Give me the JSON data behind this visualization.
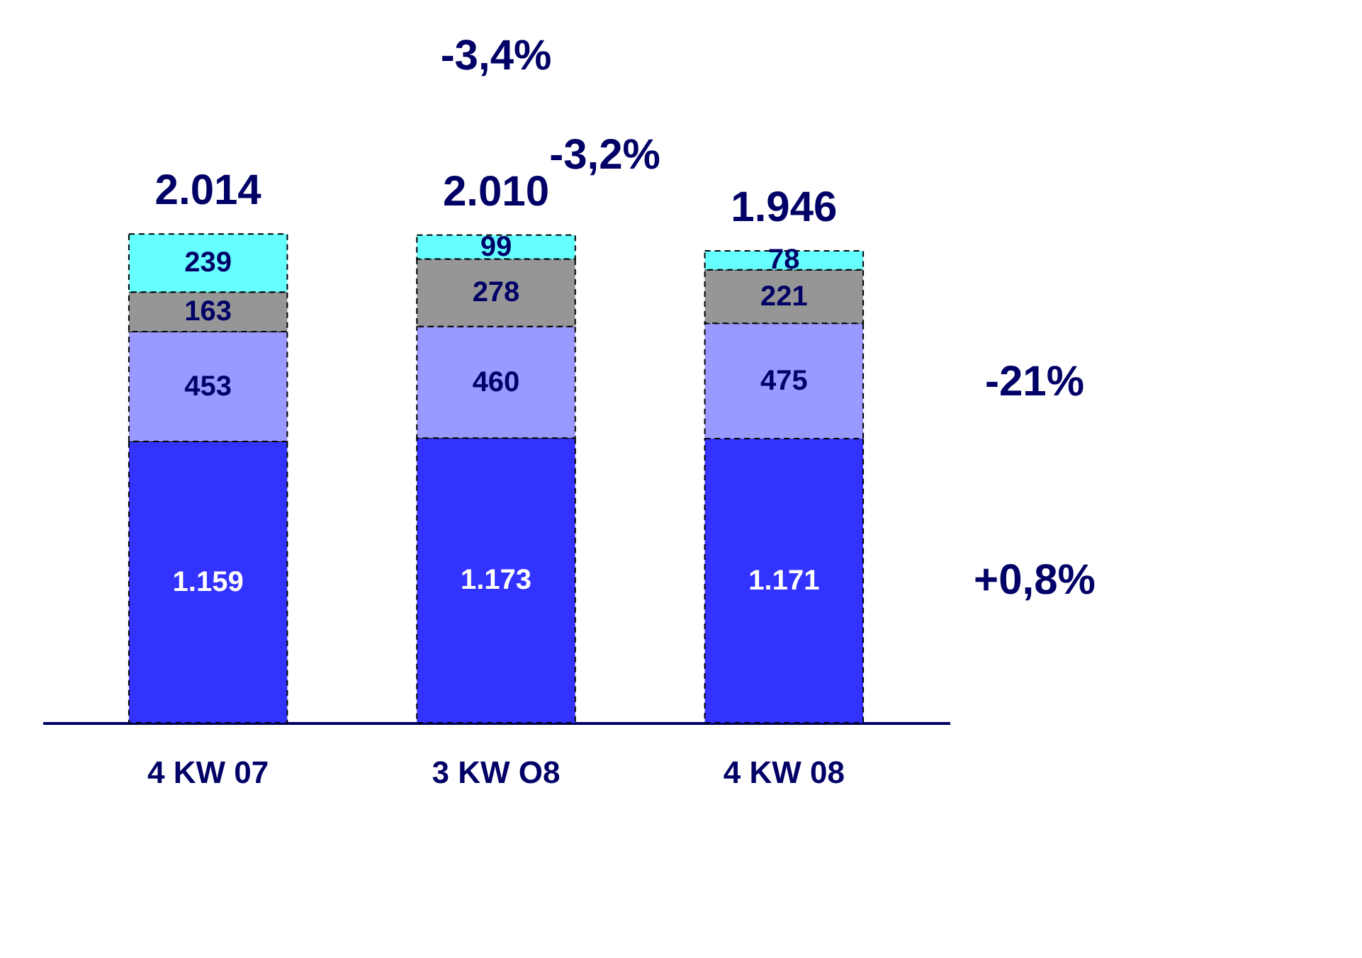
{
  "chart_data": {
    "type": "bar",
    "stacked": true,
    "categories": [
      "4 KW 07",
      "3 KW O8",
      "4 KW 08"
    ],
    "series": [
      {
        "color": "#3333ff",
        "values": [
          1159,
          1173,
          1171
        ],
        "value_labels": [
          "1.159",
          "1.173",
          "1.171"
        ]
      },
      {
        "color": "#9999ff",
        "values": [
          453,
          460,
          475
        ],
        "value_labels": [
          "453",
          "460",
          "475"
        ]
      },
      {
        "color": "#969696",
        "values": [
          163,
          278,
          221
        ],
        "value_labels": [
          "163",
          "278",
          "221"
        ]
      },
      {
        "color": "#66ffff",
        "values": [
          239,
          99,
          78
        ],
        "value_labels": [
          "239",
          "99",
          "78"
        ]
      }
    ],
    "totals": [
      "2.014",
      "2.010",
      "1.946"
    ],
    "annotations": [
      "-3,4%",
      "-3,2%",
      "-21%",
      "+0,8%"
    ]
  }
}
